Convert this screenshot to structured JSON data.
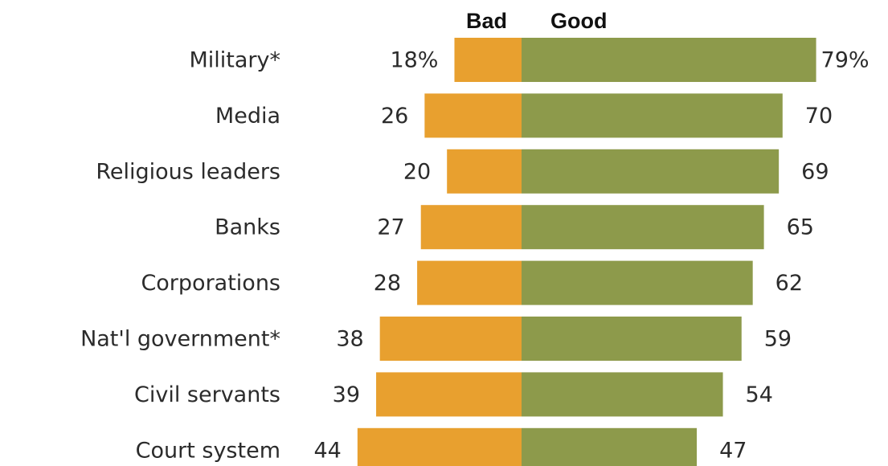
{
  "chart_data": {
    "type": "bar",
    "orientation": "horizontal-diverging",
    "categories": [
      "Military*",
      "Media",
      "Religious leaders",
      "Banks",
      "Corporations",
      "Nat'l government*",
      "Civil servants",
      "Court system"
    ],
    "series": [
      {
        "name": "Bad",
        "values": [
          18,
          26,
          20,
          27,
          28,
          38,
          39,
          44
        ],
        "labels": [
          "18%",
          "26",
          "20",
          "27",
          "28",
          "38",
          "39",
          "44"
        ],
        "color": "#E8A02F"
      },
      {
        "name": "Good",
        "values": [
          79,
          70,
          69,
          65,
          62,
          59,
          54,
          47
        ],
        "labels": [
          "79%",
          "70",
          "69",
          "65",
          "62",
          "59",
          "54",
          "47"
        ],
        "color": "#8D9A4B"
      }
    ],
    "legend_placement": "top",
    "grid": false
  }
}
